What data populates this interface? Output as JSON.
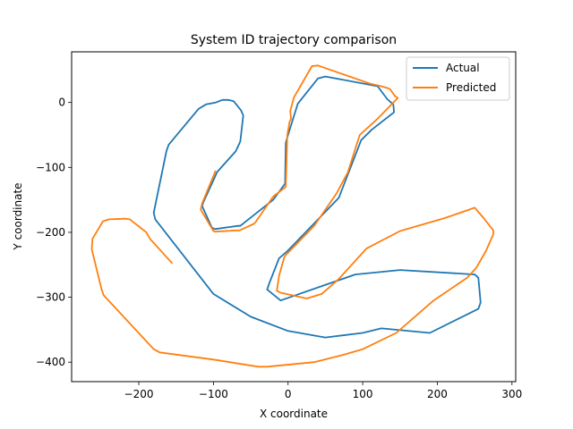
{
  "chart_data": {
    "type": "line",
    "title": "System ID trajectory comparison",
    "xlabel": "X coordinate",
    "ylabel": "Y coordinate",
    "xlim": [
      -290,
      305
    ],
    "ylim": [
      -430,
      78
    ],
    "xticks": [
      -200,
      -100,
      0,
      100,
      200,
      300
    ],
    "yticks": [
      0,
      -100,
      -200,
      -300,
      -400
    ],
    "grid": false,
    "legend_position": "top-right",
    "series": [
      {
        "name": "Actual",
        "color": "#1f77b4",
        "points": [
          [
            -95,
            -107
          ],
          [
            -70,
            -75
          ],
          [
            -64,
            -60
          ],
          [
            -60,
            -20
          ],
          [
            -63,
            -12
          ],
          [
            -68,
            -5
          ],
          [
            -73,
            2
          ],
          [
            -80,
            4
          ],
          [
            -88,
            4
          ],
          [
            -97,
            0
          ],
          [
            -110,
            -3
          ],
          [
            -120,
            -10
          ],
          [
            -160,
            -65
          ],
          [
            -163,
            -75
          ],
          [
            -180,
            -170
          ],
          [
            -178,
            -180
          ],
          [
            -100,
            -295
          ],
          [
            -50,
            -330
          ],
          [
            0,
            -352
          ],
          [
            50,
            -362
          ],
          [
            100,
            -355
          ],
          [
            125,
            -348
          ],
          [
            190,
            -355
          ],
          [
            255,
            -318
          ],
          [
            258,
            -308
          ],
          [
            255,
            -270
          ],
          [
            250,
            -265
          ],
          [
            150,
            -258
          ],
          [
            90,
            -265
          ],
          [
            -10,
            -305
          ],
          [
            -28,
            -288
          ],
          [
            -25,
            -278
          ],
          [
            -12,
            -240
          ],
          [
            0,
            -228
          ],
          [
            68,
            -147
          ],
          [
            98,
            -58
          ],
          [
            112,
            -42
          ],
          [
            142,
            -15
          ],
          [
            141,
            -3
          ],
          [
            133,
            5
          ],
          [
            120,
            25
          ],
          [
            50,
            40
          ],
          [
            40,
            37
          ],
          [
            13,
            -2
          ],
          [
            0,
            -50
          ],
          [
            -3,
            -62
          ],
          [
            -4,
            -125
          ],
          [
            -20,
            -150
          ],
          [
            -64,
            -190
          ],
          [
            -67,
            -190
          ],
          [
            -98,
            -195
          ],
          [
            -102,
            -193
          ],
          [
            -115,
            -160
          ],
          [
            -114,
            -155
          ],
          [
            -95,
            -107
          ]
        ]
      },
      {
        "name": "Predicted",
        "color": "#ff7f0e",
        "points": [
          [
            -155,
            -248
          ],
          [
            -185,
            -210
          ],
          [
            -190,
            -200
          ],
          [
            -212,
            -180
          ],
          [
            -218,
            -179
          ],
          [
            -240,
            -180
          ],
          [
            -248,
            -183
          ],
          [
            -262,
            -210
          ],
          [
            -263,
            -226
          ],
          [
            -250,
            -287
          ],
          [
            -247,
            -297
          ],
          [
            -180,
            -380
          ],
          [
            -172,
            -385
          ],
          [
            -100,
            -396
          ],
          [
            -40,
            -407
          ],
          [
            -28,
            -407
          ],
          [
            35,
            -400
          ],
          [
            70,
            -390
          ],
          [
            100,
            -380
          ],
          [
            145,
            -355
          ],
          [
            195,
            -305
          ],
          [
            240,
            -270
          ],
          [
            252,
            -255
          ],
          [
            265,
            -229
          ],
          [
            275,
            -203
          ],
          [
            275,
            -197
          ],
          [
            262,
            -178
          ],
          [
            250,
            -162
          ],
          [
            243,
            -165
          ],
          [
            210,
            -178
          ],
          [
            180,
            -188
          ],
          [
            150,
            -198
          ],
          [
            105,
            -225
          ],
          [
            68,
            -272
          ],
          [
            45,
            -295
          ],
          [
            25,
            -302
          ],
          [
            -10,
            -293
          ],
          [
            -15,
            -290
          ],
          [
            -12,
            -267
          ],
          [
            -5,
            -238
          ],
          [
            -3,
            -235
          ],
          [
            35,
            -190
          ],
          [
            65,
            -140
          ],
          [
            80,
            -108
          ],
          [
            96,
            -50
          ],
          [
            120,
            -25
          ],
          [
            147,
            7
          ],
          [
            143,
            10
          ],
          [
            137,
            20
          ],
          [
            134,
            22
          ],
          [
            125,
            25
          ],
          [
            110,
            29
          ],
          [
            40,
            57
          ],
          [
            32,
            56
          ],
          [
            8,
            8
          ],
          [
            3,
            -13
          ],
          [
            4,
            -25
          ],
          [
            2,
            -30
          ],
          [
            -1,
            -50
          ],
          [
            -3,
            -130
          ],
          [
            -20,
            -145
          ],
          [
            -44,
            -185
          ],
          [
            -46,
            -187
          ],
          [
            -65,
            -197
          ],
          [
            -70,
            -197
          ],
          [
            -98,
            -199
          ],
          [
            -100,
            -198
          ],
          [
            -117,
            -165
          ],
          [
            -115,
            -155
          ],
          [
            -97,
            -105
          ]
        ]
      }
    ]
  }
}
